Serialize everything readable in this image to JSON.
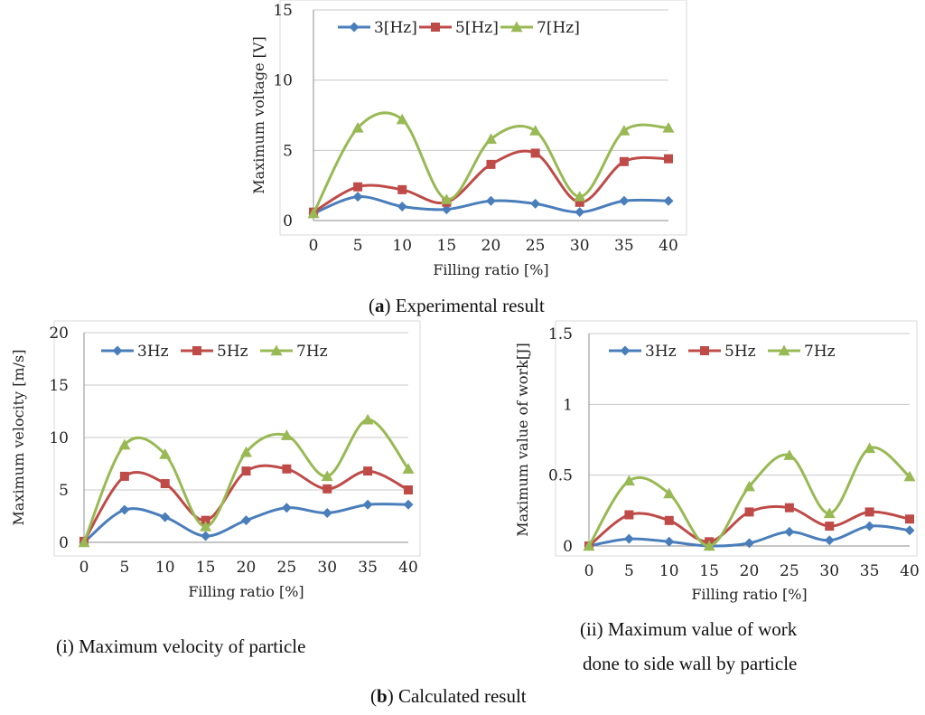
{
  "figure": {
    "caption_a_letter": "a",
    "caption_a_text": " Experimental result",
    "caption_b_letter": "b",
    "caption_b_text": " Calculated result",
    "caption_i": "(i) Maximum velocity of particle",
    "caption_ii_line1": "(ii) Maximum value of work",
    "caption_ii_line2": "done to side wall by particle"
  },
  "colors": {
    "series1": "#4a7ebb",
    "series2": "#be4b48",
    "series3": "#98b954",
    "grid": "#c8c8c8",
    "axis": "#8c8c8c"
  },
  "chart_data": [
    {
      "id": "a",
      "type": "line",
      "title": "",
      "xlabel": "Filling ratio [%]",
      "ylabel": "Maximum voltage [V]",
      "categories": [
        "0",
        "5",
        "10",
        "15",
        "20",
        "25",
        "30",
        "35",
        "40"
      ],
      "ylim": [
        0,
        15
      ],
      "yticks": [
        "0",
        "5",
        "10",
        "15"
      ],
      "series": [
        {
          "name": "3[Hz]",
          "values": [
            0.5,
            1.7,
            1.0,
            0.8,
            1.4,
            1.2,
            0.6,
            1.4,
            1.4
          ]
        },
        {
          "name": "5[Hz]",
          "values": [
            0.6,
            2.4,
            2.2,
            1.3,
            4.0,
            4.8,
            1.3,
            4.2,
            4.4
          ]
        },
        {
          "name": "7[Hz]",
          "values": [
            0.5,
            6.6,
            7.2,
            1.5,
            5.8,
            6.4,
            1.7,
            6.4,
            6.6
          ]
        }
      ]
    },
    {
      "id": "b-i",
      "type": "line",
      "title": "",
      "xlabel": "Filling ratio [%]",
      "ylabel": "Maximum velocity [m/s]",
      "categories": [
        "0",
        "5",
        "10",
        "15",
        "20",
        "25",
        "30",
        "35",
        "40"
      ],
      "ylim": [
        0,
        20
      ],
      "yticks": [
        "0",
        "5",
        "10",
        "15",
        "20"
      ],
      "series": [
        {
          "name": "3Hz",
          "values": [
            0.0,
            3.1,
            2.4,
            0.6,
            2.1,
            3.3,
            2.8,
            3.6,
            3.6
          ]
        },
        {
          "name": "5Hz",
          "values": [
            0.1,
            6.3,
            5.6,
            2.1,
            6.8,
            7.0,
            5.1,
            6.8,
            5.0
          ]
        },
        {
          "name": "7Hz",
          "values": [
            0.0,
            9.3,
            8.4,
            1.5,
            8.6,
            10.2,
            6.3,
            11.7,
            7.0
          ]
        }
      ]
    },
    {
      "id": "b-ii",
      "type": "line",
      "title": "",
      "xlabel": "Filling ratio [%]",
      "ylabel": "Maximum value of work[J]",
      "categories": [
        "0",
        "5",
        "10",
        "15",
        "20",
        "25",
        "30",
        "35",
        "40"
      ],
      "ylim": [
        0,
        1.5
      ],
      "yticks": [
        "0",
        "0.5",
        "1",
        "1.5"
      ],
      "series": [
        {
          "name": "3Hz",
          "values": [
            0.0,
            0.05,
            0.03,
            0.0,
            0.02,
            0.1,
            0.04,
            0.14,
            0.11
          ]
        },
        {
          "name": "5Hz",
          "values": [
            0.0,
            0.22,
            0.18,
            0.03,
            0.24,
            0.27,
            0.14,
            0.24,
            0.19
          ]
        },
        {
          "name": "7Hz",
          "values": [
            0.0,
            0.46,
            0.37,
            0.0,
            0.42,
            0.64,
            0.23,
            0.69,
            0.49
          ]
        }
      ]
    }
  ]
}
